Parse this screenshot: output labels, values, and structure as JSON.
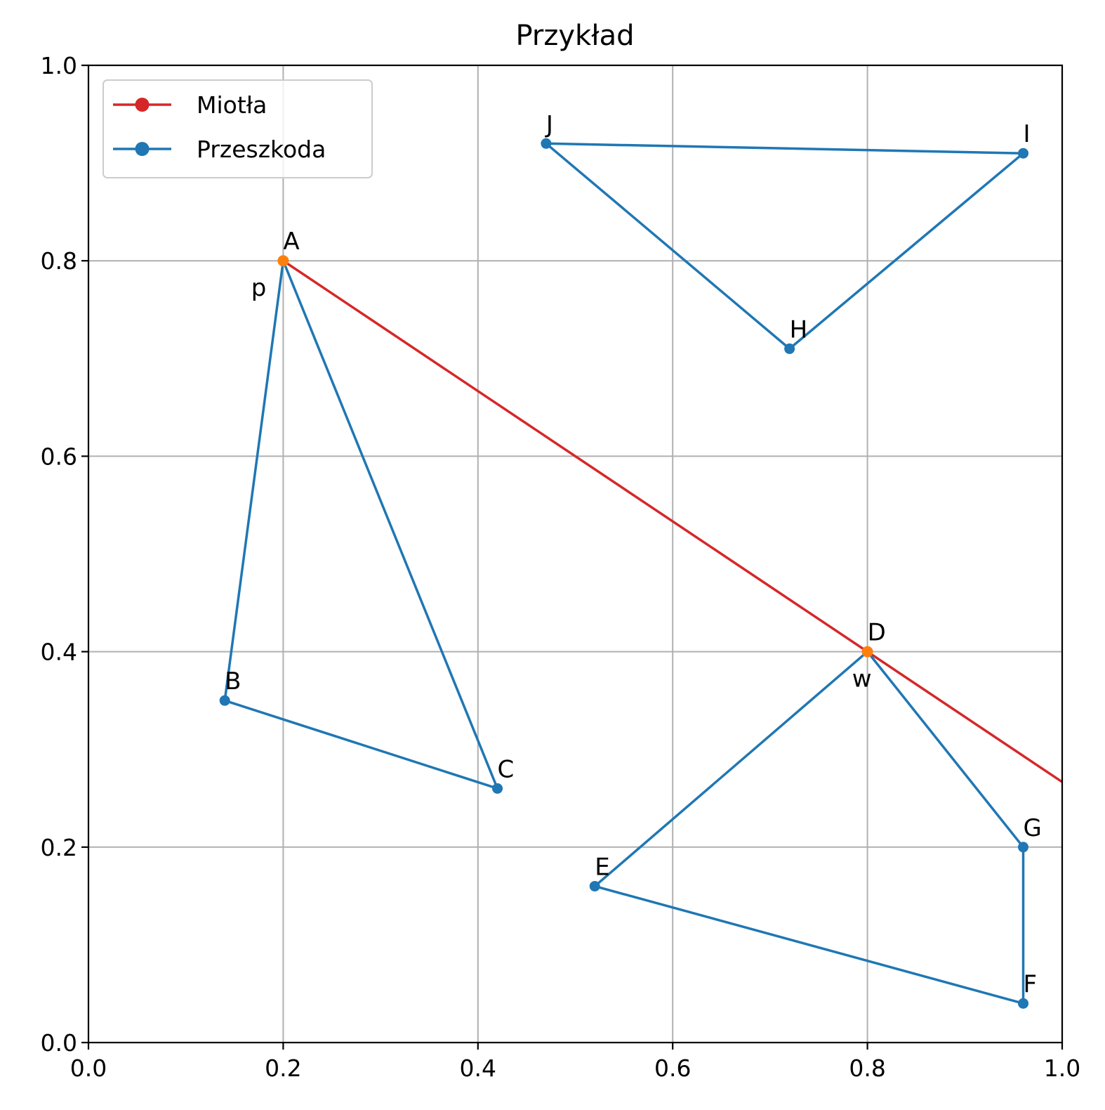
{
  "chart_data": {
    "type": "line",
    "title": "Przykład",
    "xlim": [
      0.0,
      1.0
    ],
    "ylim": [
      0.0,
      1.0
    ],
    "xticks": [
      "0.0",
      "0.2",
      "0.4",
      "0.6",
      "0.8",
      "1.0"
    ],
    "yticks": [
      "0.0",
      "0.2",
      "0.4",
      "0.6",
      "0.8",
      "1.0"
    ],
    "grid": true,
    "legend_position": "top-left",
    "legend": [
      {
        "label": "Miotła",
        "color": "#d62728"
      },
      {
        "label": "Przeszkoda",
        "color": "#1f77b4"
      }
    ],
    "broom": {
      "name": "Miotła",
      "color": "#d62728",
      "endpoint_color": "#ff7f0e",
      "line_through": [
        {
          "x": 0.2,
          "y": 0.8
        },
        {
          "x": 0.8,
          "y": 0.4
        }
      ],
      "end_point": {
        "x": 0.2,
        "y": 0.8
      },
      "direction_point": {
        "x": 0.8,
        "y": 0.4
      },
      "endpoint_labels": [
        {
          "text": "p",
          "x": 0.2,
          "y": 0.8
        },
        {
          "text": "w",
          "x": 0.8,
          "y": 0.4
        }
      ]
    },
    "obstacles": [
      {
        "name": "Przeszkoda",
        "color": "#1f77b4",
        "points": [
          {
            "label": "A",
            "x": 0.2,
            "y": 0.8
          },
          {
            "label": "B",
            "x": 0.14,
            "y": 0.35
          },
          {
            "label": "C",
            "x": 0.42,
            "y": 0.26
          }
        ]
      },
      {
        "name": "Przeszkoda",
        "color": "#1f77b4",
        "points": [
          {
            "label": "D",
            "x": 0.8,
            "y": 0.4
          },
          {
            "label": "E",
            "x": 0.52,
            "y": 0.16
          },
          {
            "label": "F",
            "x": 0.96,
            "y": 0.04
          },
          {
            "label": "G",
            "x": 0.96,
            "y": 0.2
          }
        ]
      },
      {
        "name": "Przeszkoda",
        "color": "#1f77b4",
        "points": [
          {
            "label": "H",
            "x": 0.72,
            "y": 0.71
          },
          {
            "label": "I",
            "x": 0.96,
            "y": 0.91
          },
          {
            "label": "J",
            "x": 0.47,
            "y": 0.92
          }
        ]
      }
    ]
  }
}
